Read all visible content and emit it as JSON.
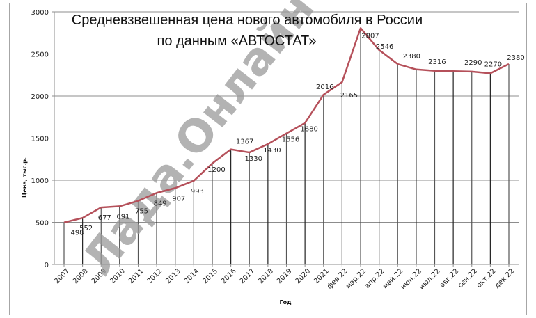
{
  "chart_data": {
    "type": "line",
    "title": "Средневзвешенная цена нового автомобиля в России по данным «АВТОСТАТ»",
    "title_lines": [
      "Средневзвешенная цена нового автомобиля в России",
      "по данным «АВТОСТАТ»"
    ],
    "xlabel": "Год",
    "ylabel": "Цена, тыс.р.",
    "ylim": [
      0,
      3000
    ],
    "yticks": [
      0,
      500,
      1000,
      1500,
      2000,
      2500,
      3000
    ],
    "grid": {
      "horizontal": true,
      "vertical_drop_lines": true
    },
    "legend": null,
    "categories": [
      "2007",
      "2008",
      "2009",
      "2010",
      "2011",
      "2012",
      "2013",
      "2014",
      "2015",
      "2016",
      "2017",
      "2018",
      "2019",
      "2020",
      "2021",
      "фев.22",
      "мар.22",
      "апр.22",
      "май.22",
      "июн.22",
      "июл.22",
      "авг.22",
      "сен.22",
      "окт.22",
      "дек.22"
    ],
    "series": [
      {
        "name": "Средневзвешенная цена",
        "color": "#b5505a",
        "values": [
          498,
          552,
          677,
          691,
          755,
          849,
          907,
          993,
          1200,
          1367,
          1330,
          1430,
          1556,
          1680,
          2016,
          2165,
          2807,
          2546,
          2380,
          2316,
          2300,
          2295,
          2290,
          2270,
          2380
        ],
        "data_labels": [
          "498",
          "552",
          "677",
          "691",
          "755",
          "849",
          "907",
          "993",
          "1200",
          "1367",
          "1330",
          "1430",
          "1556",
          "1680",
          "2016",
          "2165",
          "2807",
          "2546",
          "2380",
          "2316",
          "",
          "",
          "2290",
          "2270",
          "2380"
        ]
      }
    ]
  },
  "watermark": "Лада.Онлайн"
}
